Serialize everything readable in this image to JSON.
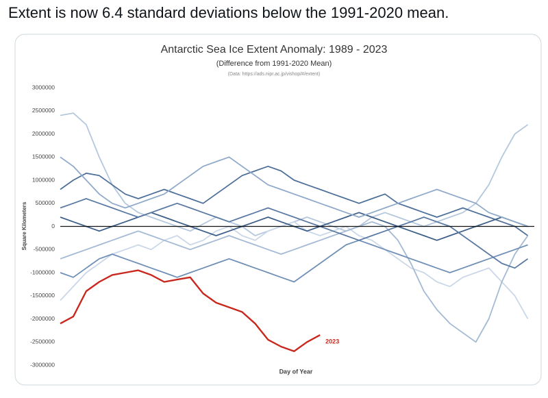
{
  "tweet": {
    "text": "Extent is now 6.4 standard deviations below the 1991-2020 mean."
  },
  "chart_data": {
    "type": "line",
    "title": "Antarctic Sea Ice Extent Anomaly: 1989 - 2023",
    "subtitle": "(Difference from 1991-2020 Mean)",
    "source": "(Data: https://ads.nipr.ac.jp/vishop/#/extent)",
    "x_label": "Day of Year",
    "y_label": "Square Kilometers",
    "x": [
      1,
      11,
      21,
      31,
      41,
      51,
      61,
      71,
      81,
      91,
      101,
      111,
      121,
      131,
      141,
      151,
      161,
      171,
      181,
      191,
      201,
      211,
      221,
      231,
      241,
      251,
      261,
      271,
      281,
      291,
      301,
      311,
      321,
      331,
      341,
      351,
      361
    ],
    "xlim": [
      1,
      366
    ],
    "ylim": [
      -3000000,
      3000000
    ],
    "yticks": [
      3000000,
      2500000,
      2000000,
      1500000,
      1000000,
      500000,
      0,
      -500000,
      -1000000,
      -1500000,
      -2000000,
      -2500000,
      -3000000
    ],
    "zero_line": true,
    "series": [
      {
        "color": "#b4c7dd",
        "values": [
          2400000,
          2450000,
          2200000,
          1500000,
          900000,
          500000,
          300000,
          200000,
          100000,
          0,
          -100000,
          50000,
          200000,
          100000,
          0,
          -200000,
          -100000,
          0,
          100000,
          200000,
          100000,
          0,
          -100000,
          0,
          200000,
          300000,
          200000,
          100000,
          0,
          100000,
          200000,
          300000,
          500000,
          900000,
          1500000,
          2000000,
          2200000
        ]
      },
      {
        "color": "#c9d7e8",
        "values": [
          -1600000,
          -1300000,
          -1000000,
          -800000,
          -600000,
          -500000,
          -400000,
          -500000,
          -300000,
          -200000,
          -400000,
          -300000,
          -100000,
          0,
          -200000,
          -300000,
          -100000,
          0,
          100000,
          -100000,
          -200000,
          -100000,
          0,
          -200000,
          -300000,
          -500000,
          -700000,
          -900000,
          -1000000,
          -1200000,
          -1300000,
          -1100000,
          -1000000,
          -900000,
          -1200000,
          -1500000,
          -2000000
        ]
      },
      {
        "color": "#4d6f99",
        "values": [
          800000,
          1000000,
          1150000,
          1100000,
          900000,
          700000,
          600000,
          700000,
          800000,
          700000,
          600000,
          500000,
          700000,
          900000,
          1100000,
          1200000,
          1300000,
          1200000,
          1000000,
          900000,
          800000,
          700000,
          600000,
          500000,
          600000,
          700000,
          500000,
          400000,
          300000,
          200000,
          300000,
          400000,
          300000,
          200000,
          100000,
          0,
          -200000
        ]
      },
      {
        "color": "#a3b9d4",
        "values": [
          -700000,
          -600000,
          -500000,
          -400000,
          -300000,
          -200000,
          -100000,
          -200000,
          -300000,
          -400000,
          -500000,
          -400000,
          -300000,
          -200000,
          -300000,
          -400000,
          -500000,
          -600000,
          -500000,
          -400000,
          -300000,
          -200000,
          -100000,
          0,
          100000,
          0,
          -300000,
          -800000,
          -1400000,
          -1800000,
          -2100000,
          -2300000,
          -2500000,
          -2000000,
          -1200000,
          -600000,
          -200000
        ]
      },
      {
        "color": "#3e5f8a",
        "values": [
          200000,
          100000,
          0,
          -100000,
          0,
          100000,
          200000,
          300000,
          200000,
          100000,
          0,
          -100000,
          -200000,
          -100000,
          0,
          100000,
          200000,
          100000,
          0,
          -100000,
          0,
          100000,
          200000,
          300000,
          200000,
          100000,
          0,
          -100000,
          -200000,
          -300000,
          -200000,
          -100000,
          0,
          100000,
          200000,
          100000,
          0
        ]
      },
      {
        "color": "#8fa9c9",
        "values": [
          1500000,
          1300000,
          1000000,
          700000,
          500000,
          400000,
          500000,
          600000,
          700000,
          900000,
          1100000,
          1300000,
          1400000,
          1500000,
          1300000,
          1100000,
          900000,
          800000,
          700000,
          600000,
          500000,
          400000,
          300000,
          200000,
          300000,
          400000,
          500000,
          600000,
          700000,
          800000,
          700000,
          600000,
          500000,
          300000,
          200000,
          100000,
          0
        ]
      },
      {
        "color": "#6f8fb6",
        "values": [
          -1000000,
          -1100000,
          -900000,
          -700000,
          -600000,
          -700000,
          -800000,
          -900000,
          -1000000,
          -1100000,
          -1000000,
          -900000,
          -800000,
          -700000,
          -800000,
          -900000,
          -1000000,
          -1100000,
          -1200000,
          -1000000,
          -800000,
          -600000,
          -400000,
          -300000,
          -400000,
          -500000,
          -600000,
          -700000,
          -800000,
          -900000,
          -1000000,
          -900000,
          -800000,
          -700000,
          -600000,
          -500000,
          -400000
        ]
      },
      {
        "color": "#5a7aa3",
        "values": [
          400000,
          500000,
          600000,
          500000,
          400000,
          300000,
          200000,
          300000,
          400000,
          500000,
          400000,
          300000,
          200000,
          100000,
          200000,
          300000,
          400000,
          300000,
          200000,
          100000,
          0,
          -100000,
          -200000,
          -300000,
          -200000,
          -100000,
          0,
          100000,
          200000,
          100000,
          0,
          -200000,
          -400000,
          -600000,
          -800000,
          -900000,
          -700000
        ]
      },
      {
        "name": "2023",
        "color": "#c8281e",
        "values": [
          -2100000,
          -1950000,
          -1400000,
          -1200000,
          -1050000,
          -1000000,
          -950000,
          -1050000,
          -1200000,
          -1150000,
          -1100000,
          -1450000,
          -1650000,
          -1750000,
          -1850000,
          -2100000,
          -2450000,
          -2600000,
          -2700000,
          -2500000,
          -2350000,
          null,
          null,
          null,
          null,
          null,
          null,
          null,
          null,
          null,
          null,
          null,
          null,
          null,
          null,
          null,
          null
        ]
      }
    ]
  }
}
